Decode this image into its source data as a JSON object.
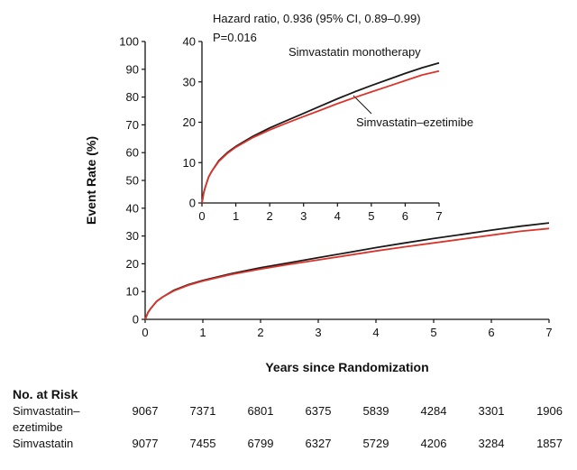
{
  "chart_data": {
    "type": "line",
    "xlabel": "Years since Randomization",
    "ylabel": "Event Rate (%)",
    "xlim": [
      0,
      7
    ],
    "ylim": [
      0,
      100
    ],
    "xticks": [
      0,
      1,
      2,
      3,
      4,
      5,
      6,
      7
    ],
    "yticks": [
      0,
      10,
      20,
      30,
      40,
      50,
      60,
      70,
      80,
      90,
      100
    ],
    "colors": {
      "monotherapy": "#1a1a1a",
      "combination": "#d9352b"
    },
    "series": [
      {
        "name": "Simvastatin monotherapy",
        "x": [
          0,
          0.05,
          0.1,
          0.2,
          0.3,
          0.5,
          0.75,
          1,
          1.5,
          2,
          2.5,
          3,
          3.5,
          4,
          4.5,
          5,
          5.5,
          6,
          6.5,
          7
        ],
        "values": [
          0,
          2.5,
          4,
          6.5,
          8,
          10.5,
          12.5,
          14,
          16.5,
          18.6,
          20.4,
          22.2,
          24,
          25.8,
          27.5,
          29.1,
          30.6,
          32.1,
          33.5,
          34.7
        ]
      },
      {
        "name": "Simvastatin–ezetimibe",
        "x": [
          0,
          0.05,
          0.1,
          0.2,
          0.3,
          0.5,
          0.75,
          1,
          1.5,
          2,
          2.5,
          3,
          3.5,
          4,
          4.5,
          5,
          5.5,
          6,
          6.5,
          7
        ],
        "values": [
          0,
          2.5,
          4,
          6.5,
          8,
          10.3,
          12.3,
          13.8,
          16.2,
          18.1,
          19.8,
          21.4,
          23,
          24.6,
          26.1,
          27.5,
          28.9,
          30.3,
          31.7,
          32.7
        ]
      }
    ],
    "inset": {
      "xlim": [
        0,
        7
      ],
      "ylim": [
        0,
        40
      ],
      "xticks": [
        0,
        1,
        2,
        3,
        4,
        5,
        6,
        7
      ],
      "yticks": [
        0,
        10,
        20,
        30,
        40
      ],
      "annotation_line1": "Hazard ratio, 0.936 (95% CI, 0.89–0.99)",
      "annotation_line2": "P=0.016",
      "label_monotherapy": "Simvastatin monotherapy",
      "label_combination": "Simvastatin–ezetimibe"
    },
    "number_at_risk": {
      "title": "No. at Risk",
      "rows": [
        {
          "label_line1": "Simvastatin–",
          "label_line2": "ezetimibe",
          "values": [
            "9067",
            "7371",
            "6801",
            "6375",
            "5839",
            "4284",
            "3301",
            "1906"
          ]
        },
        {
          "label_line1": "Simvastatin",
          "label_line2": "",
          "values": [
            "9077",
            "7455",
            "6799",
            "6327",
            "5729",
            "4206",
            "3284",
            "1857"
          ]
        }
      ]
    }
  }
}
